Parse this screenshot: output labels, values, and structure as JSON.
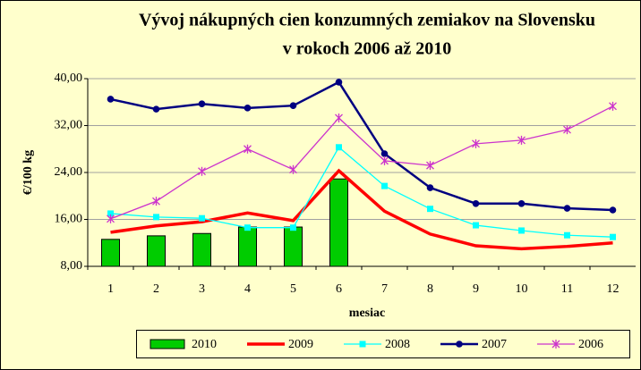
{
  "chart_data": {
    "type": "bar",
    "title": [
      "Vývoj nákupných cien konzumných zemiakov na Slovensku",
      "v rokoch 2006 až 2010"
    ],
    "x_label": "mesiac",
    "y_label": "€/100 kg",
    "categories": [
      "1",
      "2",
      "3",
      "4",
      "5",
      "6",
      "7",
      "8",
      "9",
      "10",
      "11",
      "12"
    ],
    "ylim": [
      8,
      40
    ],
    "yticks": [
      {
        "value": 8,
        "label": "8,00"
      },
      {
        "value": 16,
        "label": "16,00"
      },
      {
        "value": 24,
        "label": "24,00"
      },
      {
        "value": 32,
        "label": "32,00"
      },
      {
        "value": 40,
        "label": "40,00"
      }
    ],
    "grid": true,
    "legend": "bottom",
    "series": [
      {
        "name": "2010",
        "type": "bar",
        "color": "#00cc00",
        "values": [
          12.6,
          13.2,
          13.6,
          14.7,
          14.7,
          22.9,
          null,
          null,
          null,
          null,
          null,
          null
        ]
      },
      {
        "name": "2009",
        "type": "line",
        "marker": "none",
        "color": "#ff0000",
        "values": [
          13.8,
          14.9,
          15.6,
          17.1,
          15.8,
          24.3,
          17.4,
          13.5,
          11.5,
          11.0,
          11.4,
          12.0
        ]
      },
      {
        "name": "2008",
        "type": "line",
        "marker": "square",
        "color": "#00ffff",
        "values": [
          17.0,
          16.4,
          16.2,
          14.6,
          14.6,
          28.3,
          21.7,
          17.8,
          15.0,
          14.1,
          13.3,
          13.0
        ]
      },
      {
        "name": "2007",
        "type": "line",
        "marker": "circle",
        "color": "#000080",
        "values": [
          36.5,
          34.8,
          35.7,
          35.0,
          35.4,
          39.4,
          27.2,
          21.4,
          18.7,
          18.7,
          17.9,
          17.6
        ]
      },
      {
        "name": "2006",
        "type": "line",
        "marker": "star",
        "color": "#cc33cc",
        "values": [
          16.1,
          19.1,
          24.2,
          28.0,
          24.5,
          33.3,
          26.0,
          25.2,
          28.9,
          29.5,
          31.3,
          35.3
        ]
      }
    ]
  }
}
